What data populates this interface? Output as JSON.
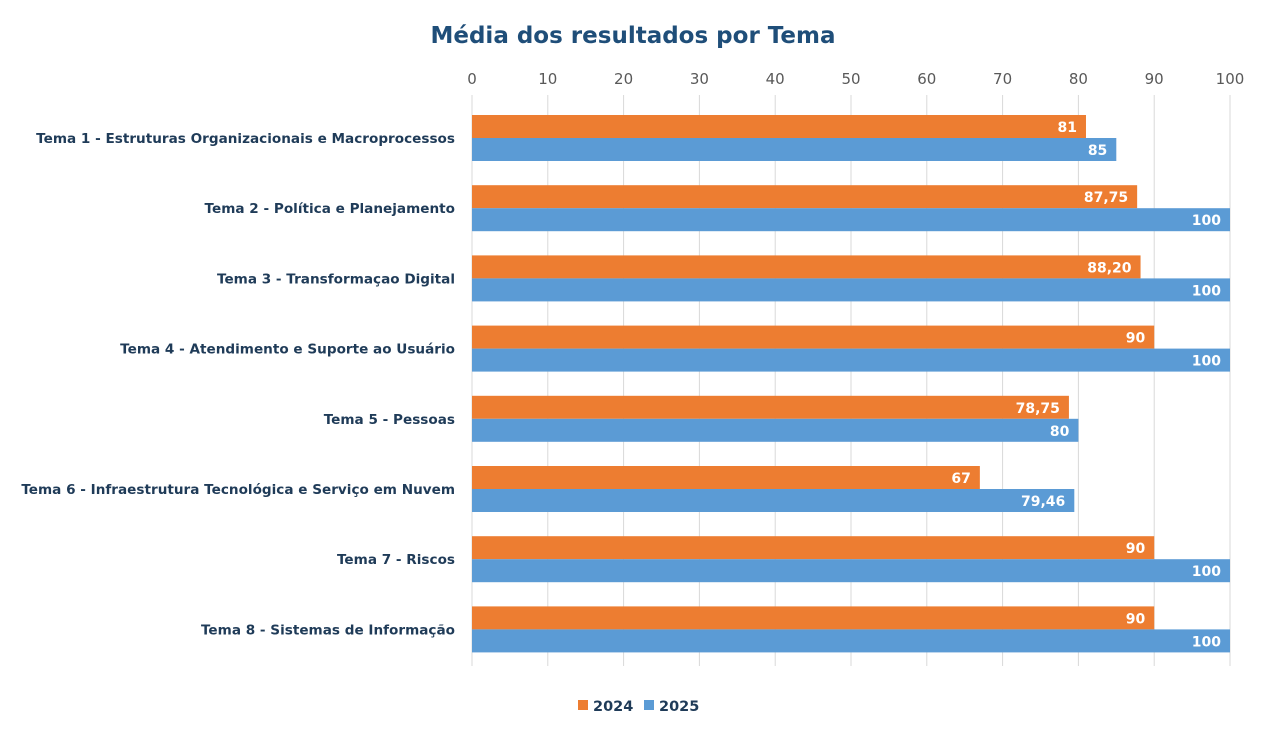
{
  "chart_data": {
    "type": "bar",
    "orientation": "horizontal",
    "title": "Média dos resultados por Tema",
    "xlabel": "",
    "ylabel": "",
    "xlim": [
      0,
      100
    ],
    "x_ticks": [
      "0",
      "10",
      "20",
      "30",
      "40",
      "50",
      "60",
      "70",
      "80",
      "90",
      "100"
    ],
    "x_axis_position": "top",
    "grid": true,
    "legend_position": "bottom",
    "categories": [
      "Tema 1 - Estruturas Organizacionais e Macroprocessos",
      "Tema 2 - Política e Planejamento",
      "Tema 3 - Transformaçao Digital",
      "Tema 4 - Atendimento e Suporte ao Usuário",
      "Tema 5 - Pessoas",
      "Tema 6 - Infraestrutura Tecnológica e Serviço em Nuvem",
      "Tema 7 - Riscos",
      "Tema 8 - Sistemas de Informação"
    ],
    "series": [
      {
        "name": "2024",
        "color": "#ed7d31",
        "values": [
          81,
          87.75,
          88.2,
          90,
          78.75,
          67,
          90,
          90
        ],
        "labels": [
          "81",
          "87,75",
          "88,20",
          "90",
          "78,75",
          "67",
          "90",
          "90"
        ]
      },
      {
        "name": "2025",
        "color": "#5b9bd5",
        "values": [
          85,
          100,
          100,
          100,
          80,
          79.46,
          100,
          100
        ],
        "labels": [
          "85",
          "100",
          "100",
          "100",
          "80",
          "79,46",
          "100",
          "100"
        ]
      }
    ]
  }
}
